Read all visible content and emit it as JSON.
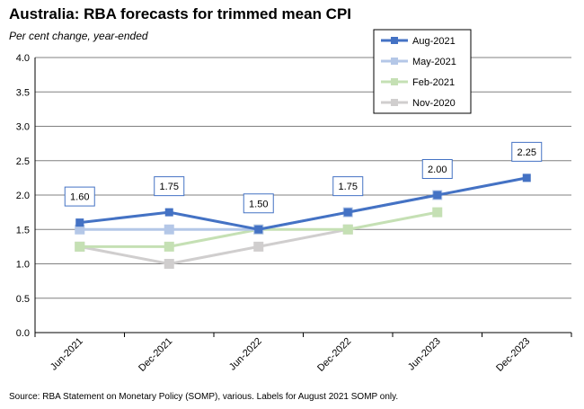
{
  "title": "Australia: RBA forecasts for trimmed mean CPI",
  "subtitle": "Per cent change, year-ended",
  "source": "Source: RBA Statement on Monetary Policy (SOMP), various. Labels for August 2021 SOMP only.",
  "chart_data": {
    "type": "line",
    "categories": [
      "Jun-2021",
      "Dec-2021",
      "Jun-2022",
      "Dec-2022",
      "Jun-2023",
      "Dec-2023"
    ],
    "ylim": [
      0,
      4
    ],
    "yticks": [
      "0.0",
      "0.5",
      "1.0",
      "1.5",
      "2.0",
      "2.5",
      "3.0",
      "3.5",
      "4.0"
    ],
    "grid": true,
    "legend_position": "top-right",
    "series": [
      {
        "name": "Aug-2021",
        "color": "#4472C4",
        "values": [
          1.6,
          1.75,
          1.5,
          1.75,
          2.0,
          2.25
        ],
        "labels": [
          "1.60",
          "1.75",
          "1.50",
          "1.75",
          "2.00",
          "2.25"
        ]
      },
      {
        "name": "May-2021",
        "color": "#B4C7E7",
        "values": [
          1.5,
          1.5,
          1.5,
          1.75,
          2.0,
          null
        ]
      },
      {
        "name": "Feb-2021",
        "color": "#C5E0B4",
        "values": [
          1.25,
          1.25,
          1.5,
          1.5,
          1.75,
          null
        ]
      },
      {
        "name": "Nov-2020",
        "color": "#D0CECE",
        "values": [
          1.25,
          1.0,
          1.25,
          1.5,
          null,
          null
        ]
      }
    ]
  }
}
